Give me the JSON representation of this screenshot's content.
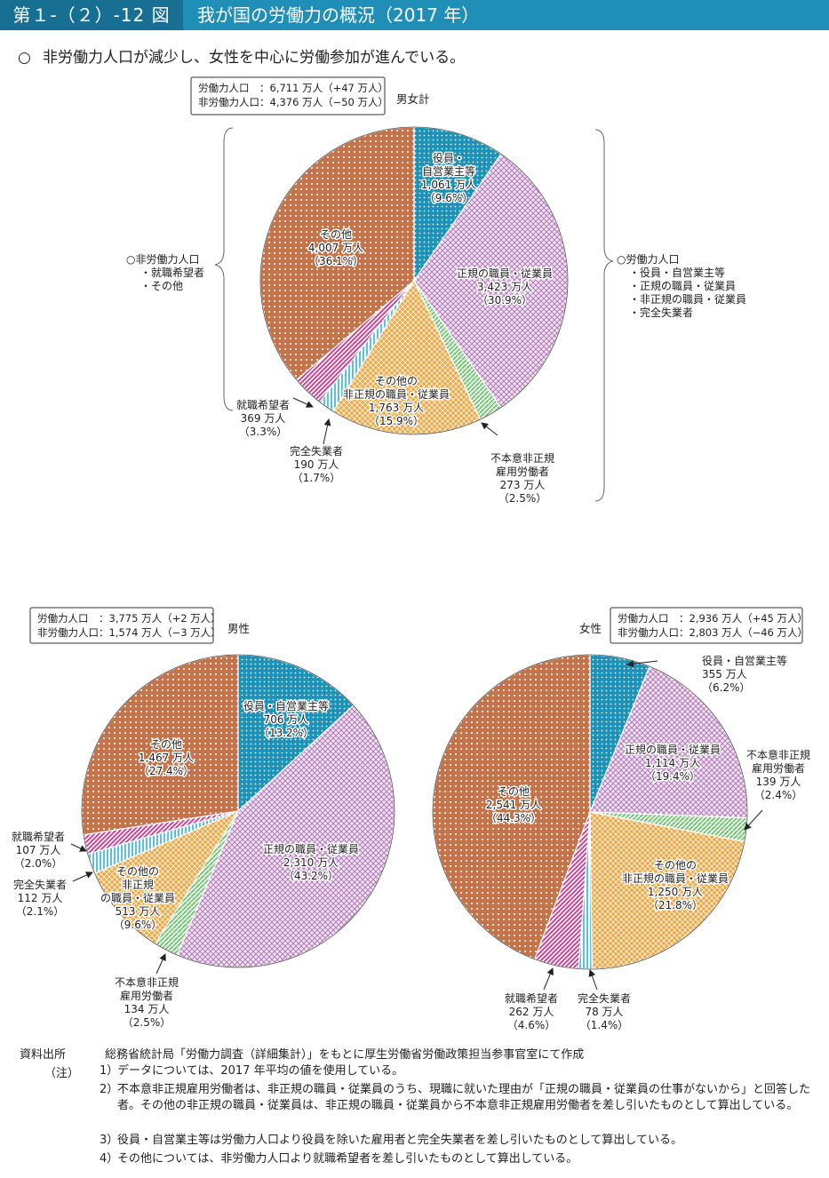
{
  "header": {
    "figure_number": "第１-（２）-12 図",
    "title": "我が国の労働力の概況（2017 年）",
    "subtitle": "非労働力人口が減少し、女性を中心に労働参加が進んでいる。",
    "subtitle_mark": "○"
  },
  "chart_data": [
    {
      "type": "pie",
      "title": "男女計",
      "info_lines": [
        "労働力人口　：6,711 万人（+47 万人）",
        "非労働力人口：4,376 万人（−50 万人）"
      ],
      "group_labels": {
        "left": [
          "○非労働力人口",
          "・就職希望者",
          "・その他"
        ],
        "right": [
          "○労働力人口",
          "・役員・自営業主等",
          "・正規の職員・従業員",
          "・非正規の職員・従業員",
          "・完全失業者"
        ]
      },
      "slices": [
        {
          "name": "役員・自営業主等",
          "value": 1061,
          "value_label": "1,061 万人",
          "percent": 9.6,
          "percent_label": "（9.6%）",
          "label_lines": [
            "役員・",
            "自営業主等"
          ],
          "pattern": "dots-blue"
        },
        {
          "name": "正規の職員・従業員",
          "value": 3423,
          "value_label": "3,423 万人",
          "percent": 30.9,
          "percent_label": "（30.9%）",
          "label_lines": [
            "正規の職員・従業員"
          ],
          "pattern": "cross-pink"
        },
        {
          "name": "不本意非正規雇用労働者",
          "value": 273,
          "value_label": "273 万人",
          "percent": 2.5,
          "percent_label": "（2.5%）",
          "label_lines": [
            "不本意非正規",
            "雇用労働者"
          ],
          "pattern": "hatch-green"
        },
        {
          "name": "その他の非正規の職員・従業員",
          "value": 1763,
          "value_label": "1,763 万人",
          "percent": 15.9,
          "percent_label": "（15.9%）",
          "label_lines": [
            "その他の",
            "非正規の職員・従業員"
          ],
          "pattern": "grid-orange"
        },
        {
          "name": "完全失業者",
          "value": 190,
          "value_label": "190 万人",
          "percent": 1.7,
          "percent_label": "（1.7%）",
          "label_lines": [
            "完全失業者"
          ],
          "pattern": "lines-cyan"
        },
        {
          "name": "就職希望者",
          "value": 369,
          "value_label": "369 万人",
          "percent": 3.3,
          "percent_label": "（3.3%）",
          "label_lines": [
            "就職希望者"
          ],
          "pattern": "diag-magenta"
        },
        {
          "name": "その他",
          "value": 4007,
          "value_label": "4,007 万人",
          "percent": 36.1,
          "percent_label": "（36.1%）",
          "label_lines": [
            "その他"
          ],
          "pattern": "dots-brown"
        }
      ]
    },
    {
      "type": "pie",
      "title": "男性",
      "info_lines": [
        "労働力人口　：3,775 万人（+2 万人）",
        "非労働力人口：1,574 万人（−3 万人）"
      ],
      "slices": [
        {
          "name": "役員・自営業主等",
          "value": 706,
          "value_label": "706 万人",
          "percent": 13.2,
          "percent_label": "（13.2%）",
          "label_lines": [
            "役員・自営業主等"
          ],
          "pattern": "dots-blue"
        },
        {
          "name": "正規の職員・従業員",
          "value": 2310,
          "value_label": "2,310 万人",
          "percent": 43.2,
          "percent_label": "（43.2%）",
          "label_lines": [
            "正規の職員・従業員"
          ],
          "pattern": "cross-pink"
        },
        {
          "name": "不本意非正規雇用労働者",
          "value": 134,
          "value_label": "134 万人",
          "percent": 2.5,
          "percent_label": "（2.5%）",
          "label_lines": [
            "不本意非正規",
            "雇用労働者"
          ],
          "pattern": "hatch-green"
        },
        {
          "name": "その他の非正規の職員・従業員",
          "value": 513,
          "value_label": "513 万人",
          "percent": 9.6,
          "percent_label": "（9.6%）",
          "label_lines": [
            "その他の",
            "非正規",
            "の職員・従業員"
          ],
          "pattern": "grid-orange"
        },
        {
          "name": "完全失業者",
          "value": 112,
          "value_label": "112 万人",
          "percent": 2.1,
          "percent_label": "（2.1%）",
          "label_lines": [
            "完全失業者"
          ],
          "pattern": "lines-cyan"
        },
        {
          "name": "就職希望者",
          "value": 107,
          "value_label": "107 万人",
          "percent": 2.0,
          "percent_label": "（2.0%）",
          "label_lines": [
            "就職希望者"
          ],
          "pattern": "diag-magenta"
        },
        {
          "name": "その他",
          "value": 1467,
          "value_label": "1,467 万人",
          "percent": 27.4,
          "percent_label": "（27.4%）",
          "label_lines": [
            "その他"
          ],
          "pattern": "dots-brown"
        }
      ]
    },
    {
      "type": "pie",
      "title": "女性",
      "info_lines": [
        "労働力人口　：2,936 万人（+45 万人）",
        "非労働力人口：2,803 万人（−46 万人）"
      ],
      "slices": [
        {
          "name": "役員・自営業主等",
          "value": 355,
          "value_label": "355 万人",
          "percent": 6.2,
          "percent_label": "（6.2%）",
          "label_lines": [
            "役員・自営業主等"
          ],
          "pattern": "dots-blue"
        },
        {
          "name": "正規の職員・従業員",
          "value": 1114,
          "value_label": "1,114 万人",
          "percent": 19.4,
          "percent_label": "（19.4%）",
          "label_lines": [
            "正規の職員・従業員"
          ],
          "pattern": "cross-pink"
        },
        {
          "name": "不本意非正規雇用労働者",
          "value": 139,
          "value_label": "139 万人",
          "percent": 2.4,
          "percent_label": "（2.4%）",
          "label_lines": [
            "不本意非正規",
            "雇用労働者"
          ],
          "pattern": "hatch-green"
        },
        {
          "name": "その他の非正規の職員・従業員",
          "value": 1250,
          "value_label": "1,250 万人",
          "percent": 21.8,
          "percent_label": "（21.8%）",
          "label_lines": [
            "その他の",
            "非正規の職員・従業員"
          ],
          "pattern": "grid-orange"
        },
        {
          "name": "完全失業者",
          "value": 78,
          "value_label": "78 万人",
          "percent": 1.4,
          "percent_label": "（1.4%）",
          "label_lines": [
            "完全失業者"
          ],
          "pattern": "lines-cyan"
        },
        {
          "name": "就職希望者",
          "value": 262,
          "value_label": "262 万人",
          "percent": 4.6,
          "percent_label": "（4.6%）",
          "label_lines": [
            "就職希望者"
          ],
          "pattern": "diag-magenta"
        },
        {
          "name": "その他",
          "value": 2541,
          "value_label": "2,541 万人",
          "percent": 44.3,
          "percent_label": "（44.3%）",
          "label_lines": [
            "その他"
          ],
          "pattern": "dots-brown"
        }
      ]
    }
  ],
  "colors": {
    "dots-blue": "#1d92b8",
    "cross-pink": "#c9a2cf",
    "hatch-green": "#8cc98f",
    "grid-orange": "#f4a13a",
    "lines-cyan": "#59c3de",
    "diag-magenta": "#d6338a",
    "dots-brown": "#c4744a",
    "header": "#1f8fb8",
    "header_dark": "#176f93"
  },
  "source": {
    "label": "資料出所",
    "text": "総務省統計局「労働力調査（詳細集計）」をもとに厚生労働省労働政策担当参事官室にて作成"
  },
  "notes": {
    "label": "（注）",
    "items": [
      {
        "num": "1）",
        "text": "データについては、2017 年平均の値を使用している。"
      },
      {
        "num": "2）",
        "text": "不本意非正規雇用労働者は、非正規の職員・従業員のうち、現職に就いた理由が「正規の職員・従業員の仕事がないから」と回答した者。その他の非正規の職員・従業員は、非正規の職員・従業員から不本意非正規雇用労働者を差し引いたものとして算出している。"
      },
      {
        "num": "3）",
        "text": "役員・自営業主等は労働力人口より役員を除いた雇用者と完全失業者を差し引いたものとして算出している。"
      },
      {
        "num": "4）",
        "text": "その他については、非労働力人口より就職希望者を差し引いたものとして算出している。"
      }
    ]
  }
}
